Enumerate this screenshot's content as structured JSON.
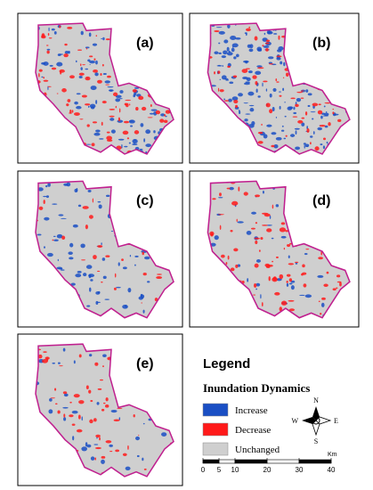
{
  "panels": [
    {
      "label": "(a)"
    },
    {
      "label": "(b)"
    },
    {
      "label": "(c)"
    },
    {
      "label": "(d)"
    },
    {
      "label": "(e)"
    }
  ],
  "legend": {
    "title": "Legend",
    "subtitle": "Inundation Dynamics",
    "items": [
      {
        "label": "Increase",
        "color": "#1a4fc4"
      },
      {
        "label": "Decrease",
        "color": "#ff1a1a"
      },
      {
        "label": "Unchanged",
        "color": "#cfcfcf"
      }
    ]
  },
  "compass": {
    "n": "N",
    "s": "S",
    "e": "E",
    "w": "W"
  },
  "scale_bar": {
    "ticks": [
      0,
      5,
      10,
      20,
      30,
      40
    ],
    "unit": "Km"
  }
}
